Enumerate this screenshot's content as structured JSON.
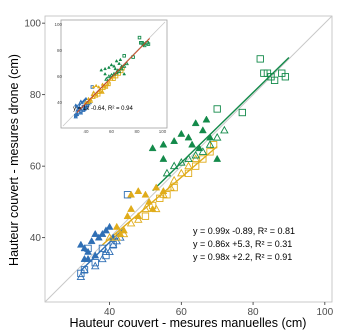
{
  "colors": {
    "blue": "#2f6fb5",
    "gold": "#e0ac1a",
    "green": "#138a4a",
    "identity": "#c8c8c8",
    "inset_fit": "#c8451e"
  },
  "chart_data": [
    {
      "type": "scatter",
      "xlabel": "Hauteur couvert - mesures manuelles (cm)",
      "ylabel": "Hauteur couvert - mesures drone (cm)",
      "xlim": [
        22,
        102
      ],
      "ylim": [
        22,
        102
      ],
      "xticks": [
        "40",
        "60",
        "80",
        "100"
      ],
      "yticks": [
        "40",
        "60",
        "80",
        "100"
      ],
      "grid": false,
      "reference_line": "y = x",
      "annotations": [
        "y = 0.99x -0.89, R² = 0.81",
        "y = 0.86x +5.3, R² = 0.31",
        "y = 0.98x +2.2, R² = 0.91"
      ],
      "series": [
        {
          "color": "#2f6fb5",
          "fit": {
            "slope": 0.99,
            "intercept": -0.89,
            "x_range": [
              32,
              44
            ]
          },
          "filled_triangles": [
            [
              32,
              38
            ],
            [
              33,
              37
            ],
            [
              34,
              36
            ],
            [
              35,
              39
            ],
            [
              36,
              41
            ],
            [
              34,
              34
            ],
            [
              37,
              40
            ],
            [
              38,
              41
            ],
            [
              39,
              42
            ],
            [
              40,
              43
            ],
            [
              41,
              40
            ],
            [
              33,
              34
            ],
            [
              36,
              35
            ]
          ],
          "open_triangles": [
            [
              32,
              29
            ],
            [
              33,
              31
            ],
            [
              36,
              32
            ],
            [
              38,
              34
            ],
            [
              40,
              36
            ],
            [
              41,
              38
            ],
            [
              39,
              36
            ],
            [
              42,
              39
            ],
            [
              43,
              40
            ]
          ],
          "open_squares": [
            [
              32,
              30
            ],
            [
              33,
              31
            ],
            [
              36,
              33
            ],
            [
              38,
              37
            ],
            [
              39,
              35
            ],
            [
              41,
              38
            ],
            [
              34,
              37
            ],
            [
              45,
              52
            ]
          ]
        },
        {
          "color": "#e0ac1a",
          "fit": {
            "slope": 0.86,
            "intercept": 5.3,
            "x_range": [
              38,
              70
            ]
          },
          "filled_triangles": [
            [
              42,
              43
            ],
            [
              43,
              41
            ],
            [
              44,
              42
            ],
            [
              45,
              46
            ],
            [
              46,
              52
            ],
            [
              48,
              53
            ],
            [
              50,
              52
            ],
            [
              51,
              50
            ],
            [
              52,
              48
            ],
            [
              53,
              54
            ],
            [
              55,
              53
            ],
            [
              46,
              48
            ],
            [
              48,
              46
            ]
          ],
          "open_triangles": [
            [
              40,
              40
            ],
            [
              42,
              40
            ],
            [
              44,
              41
            ],
            [
              46,
              44
            ],
            [
              48,
              45
            ],
            [
              50,
              48
            ],
            [
              53,
              48
            ],
            [
              55,
              52
            ],
            [
              57,
              54
            ],
            [
              58,
              56
            ],
            [
              60,
              58
            ],
            [
              62,
              60
            ],
            [
              64,
              62
            ]
          ],
          "open_squares": [
            [
              50,
              46
            ],
            [
              52,
              49
            ],
            [
              54,
              51
            ],
            [
              56,
              52
            ],
            [
              58,
              54
            ],
            [
              62,
              58
            ],
            [
              64,
              60
            ],
            [
              66,
              62
            ],
            [
              68,
              64
            ],
            [
              69,
              66
            ]
          ]
        },
        {
          "color": "#138a4a",
          "fit": {
            "slope": 0.98,
            "intercept": 2.2,
            "x_range": [
              52,
              90
            ]
          },
          "filled_triangles": [
            [
              52,
              65
            ],
            [
              55,
              66
            ],
            [
              58,
              67
            ],
            [
              60,
              69
            ],
            [
              62,
              68
            ],
            [
              63,
              66
            ],
            [
              64,
              72
            ],
            [
              66,
              70
            ],
            [
              67,
              73
            ],
            [
              65,
              65
            ],
            [
              68,
              68
            ],
            [
              70,
              62
            ],
            [
              55,
              62
            ]
          ],
          "open_triangles": [
            [
              56,
              58
            ],
            [
              58,
              60
            ],
            [
              60,
              61
            ],
            [
              62,
              62
            ],
            [
              64,
              63
            ],
            [
              66,
              64
            ],
            [
              68,
              66
            ],
            [
              70,
              68
            ],
            [
              72,
              70
            ]
          ],
          "open_squares": [
            [
              70,
              76
            ],
            [
              77,
              75
            ],
            [
              82,
              90
            ],
            [
              83,
              86
            ],
            [
              85,
              85
            ],
            [
              86,
              84
            ],
            [
              88,
              86
            ],
            [
              89,
              85
            ],
            [
              84,
              86
            ]
          ]
        }
      ]
    },
    {
      "type": "scatter",
      "role": "inset",
      "xticks": [
        "40",
        "60",
        "80",
        "100"
      ],
      "yticks": [
        "40",
        "60",
        "80",
        "100"
      ],
      "annotation": "y = 1x -0.64, R² = 0.94",
      "fit": {
        "slope": 1.0,
        "intercept": -0.64
      }
    }
  ]
}
